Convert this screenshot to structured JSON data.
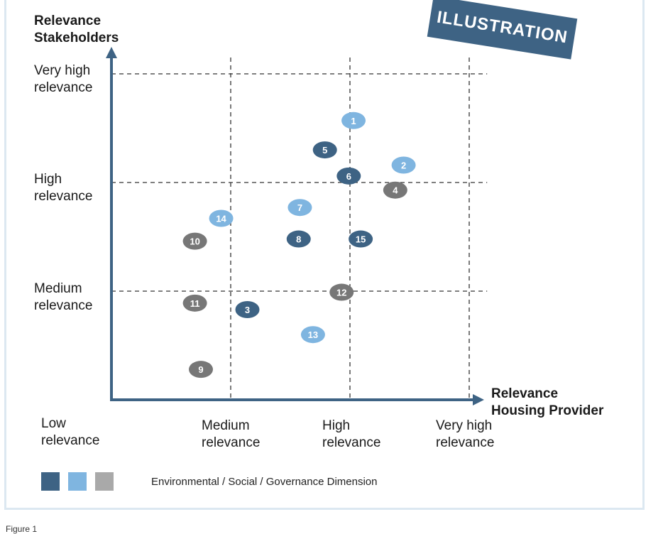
{
  "badge": "ILLUSTRATION",
  "caption": "Figure 1",
  "chart_data": {
    "type": "scatter",
    "ylabel": "Relevance\nStakeholders",
    "xlabel": "Relevance\nHousing Provider",
    "x_ticks": [
      "Low\nrelevance",
      "Medium\nrelevance",
      "High\nrelevance",
      "Very high\nrelevance"
    ],
    "y_ticks": [
      "Medium\nrelevance",
      "High\nrelevance",
      "Very high\nrelevance"
    ],
    "xlim": [
      0,
      3
    ],
    "ylim": [
      0,
      3
    ],
    "grid": true,
    "legend": {
      "text": "Environmental / Social / Governance Dimension",
      "colors": [
        "#3e6384",
        "#7fb5e0",
        "#a9a9a9"
      ]
    },
    "colors": {
      "E": "#3e6384",
      "S": "#7fb5e0",
      "G": "#777777"
    },
    "points": [
      {
        "label": "1",
        "x": 2.03,
        "y": 2.57,
        "dim": "S"
      },
      {
        "label": "2",
        "x": 2.45,
        "y": 2.16,
        "dim": "S"
      },
      {
        "label": "3",
        "x": 1.14,
        "y": 0.83,
        "dim": "E"
      },
      {
        "label": "4",
        "x": 2.38,
        "y": 1.93,
        "dim": "G"
      },
      {
        "label": "5",
        "x": 1.79,
        "y": 2.3,
        "dim": "E"
      },
      {
        "label": "6",
        "x": 1.99,
        "y": 2.06,
        "dim": "E"
      },
      {
        "label": "7",
        "x": 1.58,
        "y": 1.77,
        "dim": "S"
      },
      {
        "label": "8",
        "x": 1.57,
        "y": 1.48,
        "dim": "E"
      },
      {
        "label": "9",
        "x": 0.75,
        "y": 0.28,
        "dim": "G"
      },
      {
        "label": "10",
        "x": 0.7,
        "y": 1.46,
        "dim": "G"
      },
      {
        "label": "11",
        "x": 0.7,
        "y": 0.89,
        "dim": "G"
      },
      {
        "label": "12",
        "x": 1.93,
        "y": 0.99,
        "dim": "G"
      },
      {
        "label": "13",
        "x": 1.69,
        "y": 0.6,
        "dim": "S"
      },
      {
        "label": "14",
        "x": 0.92,
        "y": 1.67,
        "dim": "S"
      },
      {
        "label": "15",
        "x": 2.09,
        "y": 1.48,
        "dim": "E"
      }
    ]
  }
}
